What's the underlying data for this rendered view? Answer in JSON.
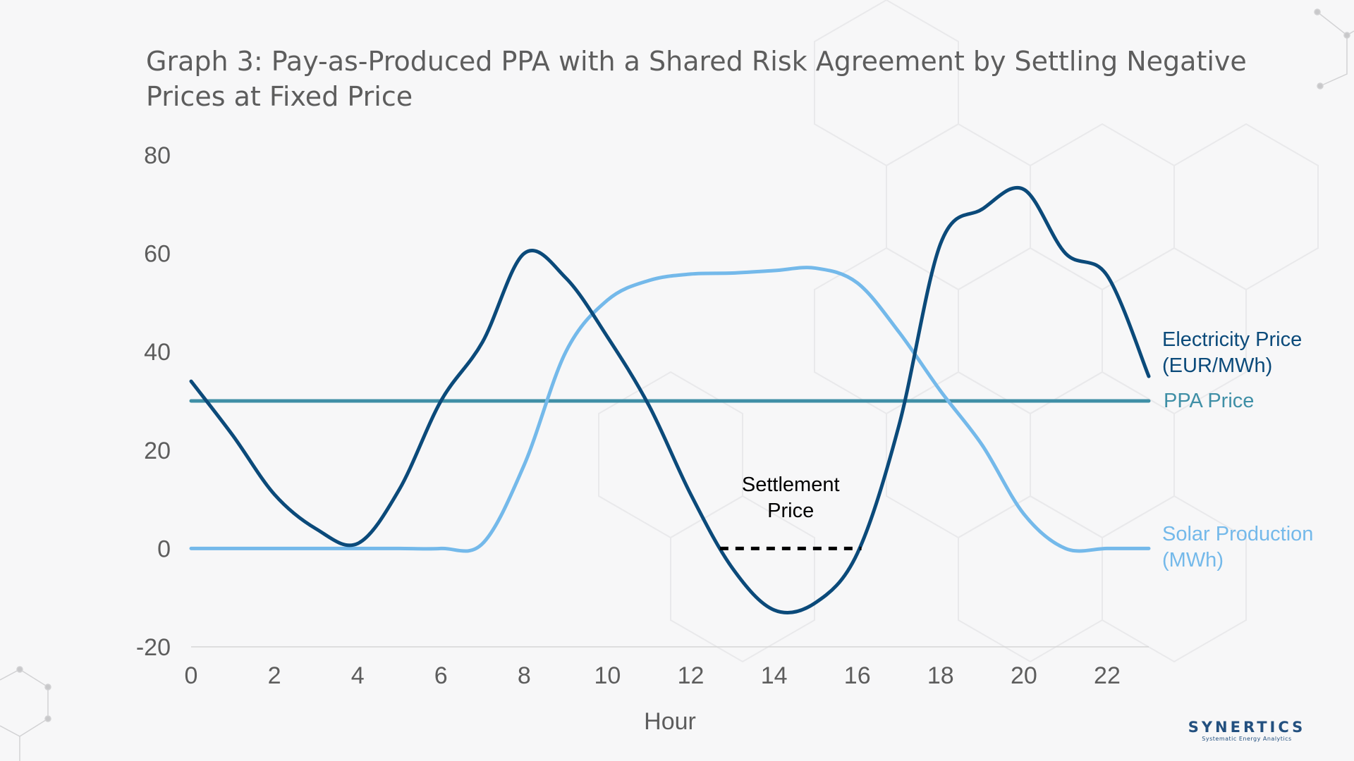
{
  "title": "Graph 3: Pay-as-Produced PPA with a Shared Risk Agreement by Settling Negative Prices at Fixed Price",
  "brand": {
    "name": "SYNERTICS",
    "tagline": "Systematic Energy Analytics"
  },
  "colors": {
    "background": "#f7f7f8",
    "electricity_price": "#0b4a7a",
    "ppa_price": "#3f8fa6",
    "solar_production": "#74b9ea",
    "settlement": "#000000",
    "axis_text": "#5d5d5d"
  },
  "chart_data": {
    "type": "line",
    "title": "Graph 3: Pay-as-Produced PPA with a Shared Risk Agreement by Settling Negative Prices at Fixed Price",
    "xlabel": "Hour",
    "ylabel": "",
    "xlim": [
      0,
      23
    ],
    "ylim": [
      -20,
      80
    ],
    "x_ticks": [
      0,
      2,
      4,
      6,
      8,
      10,
      12,
      14,
      16,
      18,
      20,
      22
    ],
    "y_ticks": [
      -20,
      0,
      20,
      40,
      60,
      80
    ],
    "grid": false,
    "legend": "inline-right",
    "series": [
      {
        "name": "Electricity Price (EUR/MWh)",
        "label_lines": [
          "Electricity Price",
          "(EUR/MWh)"
        ],
        "color": "#0b4a7a",
        "points": [
          [
            0,
            34
          ],
          [
            1,
            23
          ],
          [
            2,
            11
          ],
          [
            3,
            4
          ],
          [
            4,
            1
          ],
          [
            5,
            12
          ],
          [
            6,
            30
          ],
          [
            7,
            42
          ],
          [
            8,
            60
          ],
          [
            9,
            55
          ],
          [
            10,
            43
          ],
          [
            11,
            29
          ],
          [
            12,
            11
          ],
          [
            13,
            -4
          ],
          [
            14,
            -12.5
          ],
          [
            15,
            -11
          ],
          [
            16,
            -1
          ],
          [
            17,
            25
          ],
          [
            18,
            62
          ],
          [
            19,
            69
          ],
          [
            20,
            73
          ],
          [
            21,
            60
          ],
          [
            22,
            55.5
          ],
          [
            23,
            35
          ]
        ]
      },
      {
        "name": "PPA Price",
        "label_lines": [
          "PPA Price"
        ],
        "color": "#3f8fa6",
        "points": [
          [
            0,
            30
          ],
          [
            23,
            30
          ]
        ]
      },
      {
        "name": "Solar Production (MWh)",
        "label_lines": [
          "Solar Production",
          "(MWh)"
        ],
        "color": "#74b9ea",
        "points": [
          [
            0,
            0
          ],
          [
            1,
            0
          ],
          [
            2,
            0
          ],
          [
            3,
            0
          ],
          [
            4,
            0
          ],
          [
            5,
            0
          ],
          [
            6,
            0
          ],
          [
            7,
            1
          ],
          [
            8,
            17
          ],
          [
            9,
            40
          ],
          [
            10,
            50.5
          ],
          [
            11,
            54.5
          ],
          [
            12,
            55.8
          ],
          [
            13,
            56
          ],
          [
            14,
            56.5
          ],
          [
            15,
            57
          ],
          [
            16,
            54
          ],
          [
            17,
            44
          ],
          [
            18,
            32
          ],
          [
            19,
            21
          ],
          [
            20,
            7
          ],
          [
            21,
            0
          ],
          [
            22,
            0
          ],
          [
            23,
            0
          ]
        ]
      }
    ],
    "annotations": [
      {
        "label_lines": [
          "Settlement",
          "Price"
        ],
        "color": "#000000",
        "style": "dashed",
        "x": [
          12.7,
          16.1
        ],
        "y": 0
      }
    ]
  }
}
